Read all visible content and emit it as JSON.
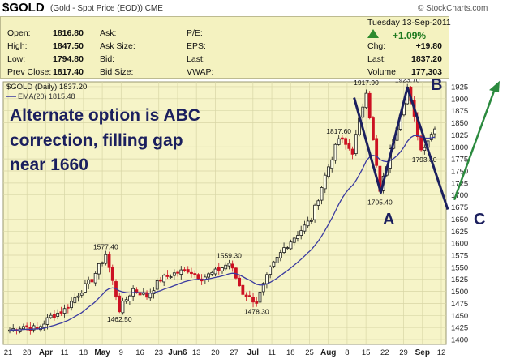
{
  "header": {
    "symbol": "$GOLD",
    "description": "(Gold - Spot Price (EOD))",
    "exchange": "CME",
    "logo": "© StockCharts.com"
  },
  "quote": {
    "date": "Tuesday  13-Sep-2011",
    "change_pct": "+1.09%",
    "rows": [
      {
        "label": "Open:",
        "value": "1816.80",
        "label2": "Ask:",
        "label3": "P/E:",
        "label4": "Chg:",
        "value4": "+19.80"
      },
      {
        "label": "High:",
        "value": "1847.50",
        "label2": "Ask Size:",
        "label3": "EPS:",
        "label4": "Last:",
        "value4": "1837.20"
      },
      {
        "label": "Low:",
        "value": "1794.80",
        "label2": "Bid:",
        "label3": "Last:",
        "label4": "Volume:",
        "value4": "177,303"
      },
      {
        "label": "Prev Close:",
        "value": "1817.40",
        "label2": "Bid Size:",
        "label3": "VWAP:",
        "label4": "",
        "value4": ""
      }
    ]
  },
  "colors": {
    "plot_bg": "#f6f4c8",
    "grid": "#d8d6a6",
    "up": "#1a1a1a",
    "down": "#cc1122",
    "ema": "#3a3aa0",
    "annotation": "#1b1f5e",
    "arrow": "#2b8a3e"
  },
  "chart_data": {
    "type": "candlestick",
    "title_line": "$GOLD (Daily) 1837.20",
    "legend": "EMA(20) 1815.48",
    "ylim": [
      1390,
      1935
    ],
    "y_ticks": [
      1400,
      1425,
      1450,
      1475,
      1500,
      1525,
      1550,
      1575,
      1600,
      1625,
      1650,
      1675,
      1700,
      1725,
      1750,
      1775,
      1800,
      1825,
      1850,
      1875,
      1900,
      1925
    ],
    "x_ticks": [
      "21",
      "28",
      "Apr",
      "11",
      "18",
      "May",
      "9",
      "16",
      "23",
      "Jun6",
      "13",
      "20",
      "27",
      "Jul",
      "11",
      "18",
      "25",
      "Aug",
      "8",
      "15",
      "22",
      "29",
      "Sep",
      "12"
    ],
    "price_path": [
      {
        "date": "Mar 17",
        "close": 1420
      },
      {
        "date": "Mar 21",
        "close": 1428
      },
      {
        "date": "Mar 28",
        "close": 1422
      },
      {
        "date": "Apr 4",
        "close": 1448
      },
      {
        "date": "Apr 11",
        "close": 1462
      },
      {
        "date": "Apr 18",
        "close": 1495
      },
      {
        "date": "Apr 25",
        "close": 1525
      },
      {
        "date": "May 2",
        "close": 1577.4
      },
      {
        "date": "May 5",
        "close": 1462.5
      },
      {
        "date": "May 9",
        "close": 1505
      },
      {
        "date": "May 16",
        "close": 1490
      },
      {
        "date": "May 23",
        "close": 1525
      },
      {
        "date": "May 30",
        "close": 1537
      },
      {
        "date": "Jun 6",
        "close": 1545
      },
      {
        "date": "Jun 13",
        "close": 1528
      },
      {
        "date": "Jun 20",
        "close": 1540
      },
      {
        "date": "Jun 27",
        "close": 1559.3
      },
      {
        "date": "Jun 30",
        "close": 1497
      },
      {
        "date": "Jul 1",
        "close": 1478.3
      },
      {
        "date": "Jul 11",
        "close": 1545
      },
      {
        "date": "Jul 18",
        "close": 1590
      },
      {
        "date": "Jul 25",
        "close": 1620
      },
      {
        "date": "Aug 1",
        "close": 1650
      },
      {
        "date": "Aug 8",
        "close": 1740
      },
      {
        "date": "Aug 11",
        "close": 1817.6
      },
      {
        "date": "Aug 15",
        "close": 1790
      },
      {
        "date": "Aug 22",
        "close": 1917.9
      },
      {
        "date": "Aug 24",
        "close": 1705.4
      },
      {
        "date": "Aug 29",
        "close": 1820
      },
      {
        "date": "Sep 6",
        "close": 1923.7
      },
      {
        "date": "Sep 8",
        "close": 1793.8
      },
      {
        "date": "Sep 13",
        "close": 1837.2
      }
    ],
    "price_labels": [
      "1577.40",
      "1462.50",
      "1559.30",
      "1478.30",
      "1817.60",
      "1917.90",
      "1705.40",
      "1923.70",
      "1793.80"
    ]
  },
  "annotations": {
    "line1": "Alternate option is ABC",
    "line2": "correction, filling gap",
    "line3": "near 1660",
    "A": "A",
    "B": "B",
    "C": "C"
  }
}
